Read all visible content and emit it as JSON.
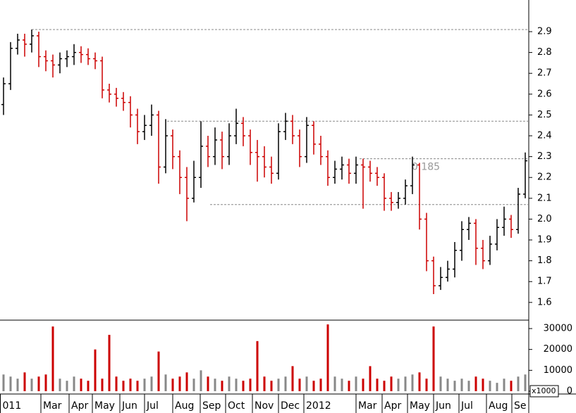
{
  "chart_data": [
    {
      "type": "ohlc",
      "up_color": "#000000",
      "down_color": "#cc0000",
      "xlim": [
        -0.5,
        74.5
      ],
      "xticks": [
        {
          "value": -0.5,
          "label": "011"
        },
        {
          "value": 5.3,
          "label": "Mar"
        },
        {
          "value": 9.3,
          "label": "Apr"
        },
        {
          "value": 12.6,
          "label": "May"
        },
        {
          "value": 16.5,
          "label": "Jun"
        },
        {
          "value": 20,
          "label": "Jul"
        },
        {
          "value": 24,
          "label": "Aug"
        },
        {
          "value": 27.9,
          "label": "Sep"
        },
        {
          "value": 31.5,
          "label": "Oct"
        },
        {
          "value": 35.3,
          "label": "Nov"
        },
        {
          "value": 39,
          "label": "Dec"
        },
        {
          "value": 42.6,
          "label": "2012"
        },
        {
          "value": 50,
          "label": "Mar"
        },
        {
          "value": 53.7,
          "label": "Apr"
        },
        {
          "value": 57.3,
          "label": "May"
        },
        {
          "value": 61,
          "label": "Jun"
        },
        {
          "value": 64.6,
          "label": "Jul"
        },
        {
          "value": 68.5,
          "label": "Aug"
        },
        {
          "value": 72.1,
          "label": "Se"
        }
      ],
      "ylim": [
        1.515,
        3.052
      ],
      "yticks": [
        1.6,
        1.7,
        1.8,
        1.9,
        {
          "value": 2,
          "label": "2.0"
        },
        2.1,
        2.2,
        2.3,
        2.4,
        2.5,
        2.6,
        2.7,
        2.8,
        2.9
      ],
      "levels": [
        {
          "value": 2.91,
          "from": 4
        },
        {
          "value": 2.47,
          "from": 23.2
        },
        {
          "value": 2.29,
          "from": 50.5
        },
        {
          "value": 2.07,
          "from": 29.3
        }
      ],
      "annotation": {
        "text": "0.185",
        "x": 57.9,
        "y": 2.25
      },
      "x": [
        0,
        1,
        2,
        3,
        4,
        5,
        6,
        7,
        8,
        9,
        10,
        11,
        12,
        13,
        14,
        15,
        16,
        17,
        18,
        19,
        20,
        21,
        22,
        23,
        24,
        25,
        26,
        27,
        28,
        29,
        30,
        31,
        32,
        33,
        34,
        35,
        36,
        37,
        38,
        39,
        40,
        41,
        42,
        43,
        44,
        45,
        46,
        47,
        48,
        49,
        50,
        51,
        52,
        53,
        54,
        55,
        56,
        57,
        58,
        59,
        60,
        61,
        62,
        63,
        64,
        65,
        66,
        67,
        68,
        69,
        70,
        71,
        72,
        73,
        74
      ],
      "open": [
        2.55,
        2.65,
        2.82,
        2.86,
        2.84,
        2.88,
        2.78,
        2.76,
        2.74,
        2.77,
        2.78,
        2.8,
        2.79,
        2.77,
        2.76,
        2.62,
        2.6,
        2.58,
        2.56,
        2.5,
        2.42,
        2.45,
        2.5,
        2.25,
        2.4,
        2.3,
        2.2,
        2.1,
        2.2,
        2.35,
        2.3,
        2.38,
        2.3,
        2.4,
        2.46,
        2.4,
        2.32,
        2.3,
        2.25,
        2.22,
        2.42,
        2.47,
        2.4,
        2.3,
        2.45,
        2.36,
        2.3,
        2.2,
        2.24,
        2.26,
        2.22,
        2.26,
        2.25,
        2.22,
        2.2,
        2.1,
        2.08,
        2.1,
        2.16,
        2.26,
        2.0,
        1.8,
        1.68,
        1.72,
        1.76,
        1.85,
        1.95,
        1.98,
        1.86,
        1.8,
        1.88,
        1.96,
        2.0,
        1.95,
        2.12
      ],
      "high": [
        2.68,
        2.85,
        2.89,
        2.89,
        2.91,
        2.9,
        2.81,
        2.79,
        2.8,
        2.81,
        2.84,
        2.83,
        2.82,
        2.8,
        2.78,
        2.65,
        2.63,
        2.61,
        2.59,
        2.53,
        2.5,
        2.55,
        2.52,
        2.48,
        2.43,
        2.33,
        2.25,
        2.28,
        2.47,
        2.4,
        2.44,
        2.42,
        2.46,
        2.53,
        2.49,
        2.43,
        2.38,
        2.35,
        2.3,
        2.46,
        2.51,
        2.5,
        2.43,
        2.49,
        2.47,
        2.4,
        2.33,
        2.28,
        2.3,
        2.29,
        2.3,
        2.29,
        2.28,
        2.25,
        2.22,
        2.13,
        2.13,
        2.19,
        2.3,
        2.27,
        2.03,
        1.82,
        1.77,
        1.8,
        1.89,
        1.99,
        2.01,
        2.0,
        1.9,
        1.92,
        2.0,
        2.06,
        2.02,
        2.15,
        2.32
      ],
      "low": [
        2.5,
        2.62,
        2.79,
        2.78,
        2.8,
        2.73,
        2.71,
        2.68,
        2.7,
        2.73,
        2.74,
        2.75,
        2.74,
        2.72,
        2.58,
        2.56,
        2.54,
        2.52,
        2.44,
        2.36,
        2.38,
        2.4,
        2.17,
        2.22,
        2.24,
        2.12,
        1.99,
        2.08,
        2.15,
        2.25,
        2.26,
        2.24,
        2.26,
        2.36,
        2.35,
        2.26,
        2.18,
        2.2,
        2.17,
        2.19,
        2.38,
        2.36,
        2.25,
        2.27,
        2.31,
        2.26,
        2.16,
        2.17,
        2.19,
        2.17,
        2.17,
        2.05,
        2.18,
        2.16,
        2.04,
        2.04,
        2.05,
        2.07,
        2.12,
        1.95,
        1.75,
        1.64,
        1.66,
        1.7,
        1.72,
        1.8,
        1.9,
        1.78,
        1.76,
        1.78,
        1.85,
        1.92,
        1.91,
        1.93,
        2.1
      ],
      "close": [
        2.65,
        2.82,
        2.86,
        2.84,
        2.88,
        2.78,
        2.76,
        2.74,
        2.77,
        2.78,
        2.8,
        2.79,
        2.77,
        2.76,
        2.62,
        2.6,
        2.58,
        2.56,
        2.5,
        2.42,
        2.45,
        2.5,
        2.25,
        2.4,
        2.3,
        2.2,
        2.1,
        2.2,
        2.35,
        2.3,
        2.38,
        2.3,
        2.4,
        2.46,
        2.4,
        2.32,
        2.3,
        2.25,
        2.22,
        2.42,
        2.47,
        2.4,
        2.3,
        2.45,
        2.36,
        2.3,
        2.2,
        2.24,
        2.26,
        2.22,
        2.26,
        2.25,
        2.22,
        2.2,
        2.1,
        2.08,
        2.1,
        2.16,
        2.26,
        2.0,
        1.8,
        1.68,
        1.72,
        1.76,
        1.85,
        1.95,
        1.98,
        1.86,
        1.8,
        1.88,
        1.96,
        2.0,
        1.95,
        2.12,
        2.28
      ]
    },
    {
      "type": "bar",
      "unit_label": "x1000",
      "ylim": [
        -1350,
        34050
      ],
      "yticks": [
        0,
        10000,
        20000,
        30000
      ],
      "values": [
        8000,
        7000,
        6000,
        9000,
        6000,
        7000,
        8000,
        31000,
        6000,
        5000,
        7000,
        6000,
        5000,
        20000,
        6000,
        27000,
        7000,
        5000,
        6000,
        5000,
        6000,
        7000,
        19000,
        8000,
        6000,
        7000,
        9000,
        6000,
        10000,
        7000,
        6000,
        5000,
        7000,
        6000,
        5000,
        6000,
        24000,
        7000,
        5000,
        6000,
        7000,
        12000,
        6000,
        7000,
        5000,
        6000,
        32000,
        7000,
        6000,
        5000,
        7000,
        6000,
        12000,
        6000,
        5000,
        7000,
        6000,
        7000,
        8000,
        9000,
        6000,
        31000,
        7000,
        6000,
        5000,
        6000,
        5000,
        7000,
        6000,
        5000,
        4000,
        6000,
        5000,
        7000,
        8000
      ]
    }
  ]
}
